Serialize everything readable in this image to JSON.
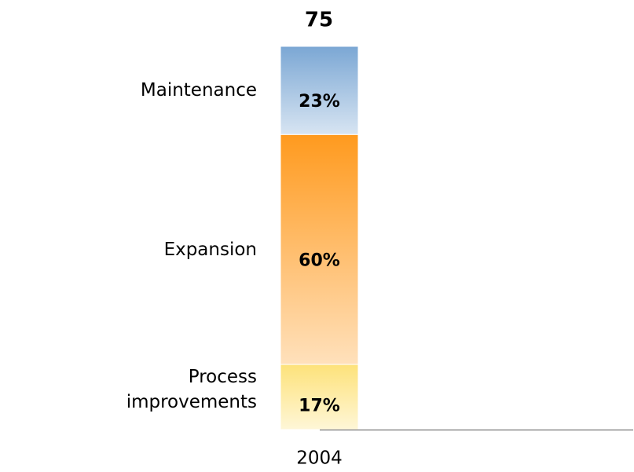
{
  "chart_data": {
    "type": "bar",
    "stacked": true,
    "categories": [
      "2004"
    ],
    "total": 75,
    "series": [
      {
        "name": "Process improvements",
        "color": "#fde27a",
        "values": [
          17
        ],
        "value_labels": [
          "17%"
        ]
      },
      {
        "name": "Expansion",
        "color": "#ff9a1e",
        "values": [
          60
        ],
        "value_labels": [
          "60%"
        ]
      },
      {
        "name": "Maintenance",
        "color": "#7ba7d4",
        "values": [
          23
        ],
        "value_labels": [
          "23%"
        ]
      }
    ]
  }
}
